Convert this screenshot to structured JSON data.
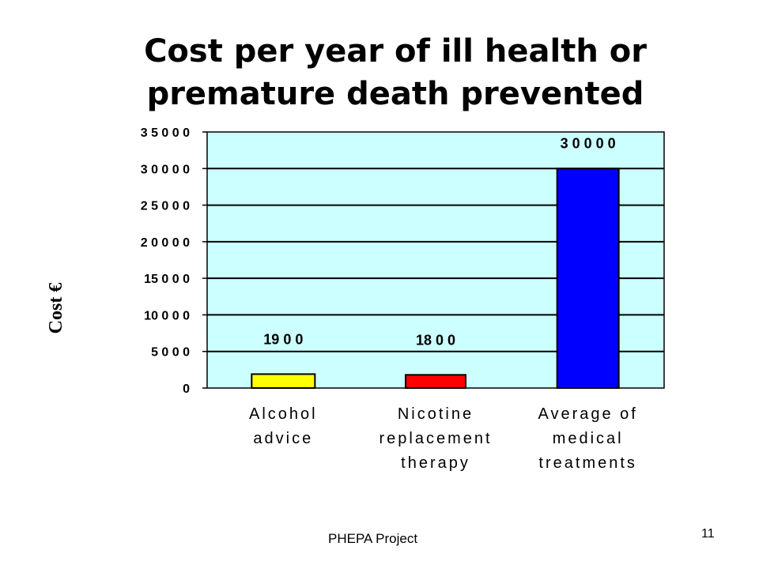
{
  "slide": {
    "title_line1": "Cost per year of ill health or",
    "title_line2": "premature death prevented",
    "footer": "PHEPA Project",
    "page_number": "11"
  },
  "chart_data": {
    "type": "bar",
    "categories": [
      [
        "Alcohol",
        "advice"
      ],
      [
        "Nicotine",
        "replacement",
        "therapy"
      ],
      [
        "Average of",
        "medical",
        "treatments"
      ]
    ],
    "values": [
      1900,
      1800,
      30000
    ],
    "value_labels": [
      "19 0 0",
      "18 0 0",
      "3 0 0 0 0"
    ],
    "bar_colors": [
      "#ffff00",
      "#ff0000",
      "#0000ff"
    ],
    "ylabel": "Cost €",
    "ylim": [
      0,
      35000
    ],
    "yticks": [
      0,
      5000,
      10000,
      15000,
      20000,
      25000,
      30000,
      35000
    ],
    "ytick_labels": [
      "0",
      "5 0 0 0",
      "10 0 0 0",
      "15 0 0 0",
      "2 0 0 0 0",
      "2 5 0 0 0",
      "3 0 0 0 0",
      "3 5 0 0 0"
    ],
    "grid": true,
    "plot_background": "#ccffff",
    "legend": "none"
  }
}
